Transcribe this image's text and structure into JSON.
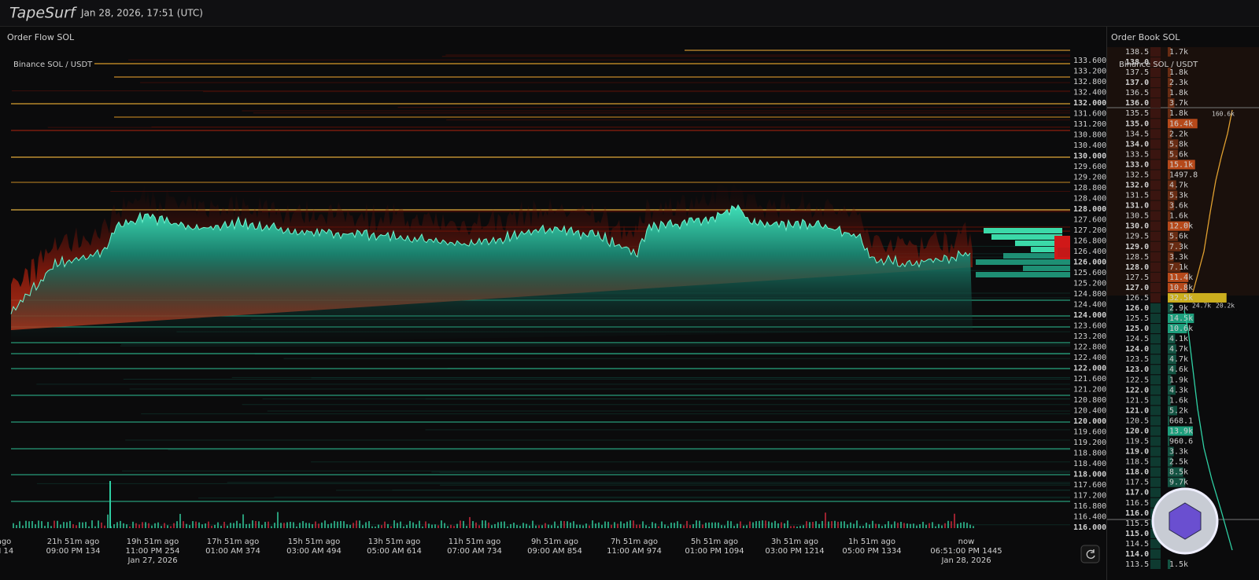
{
  "header": {
    "brand": "TapeSurf",
    "datetime": "Jan 28, 2026, 17:51 (UTC)"
  },
  "order_flow": {
    "title": "Order Flow SOL",
    "exchange": "Binance SOL / USDT",
    "price_axis": [
      "133.600",
      "133.200",
      "132.800",
      "132.400",
      "132.000",
      "131.600",
      "131.200",
      "130.800",
      "130.400",
      "130.000",
      "129.600",
      "129.200",
      "128.800",
      "128.400",
      "128.000",
      "127.600",
      "127.200",
      "126.800",
      "126.400",
      "126.000",
      "125.600",
      "125.200",
      "124.800",
      "124.400",
      "124.000",
      "123.600",
      "123.200",
      "122.800",
      "122.400",
      "122.000",
      "121.600",
      "121.200",
      "120.800",
      "120.400",
      "120.000",
      "119.600",
      "119.200",
      "118.800",
      "118.400",
      "118.000",
      "117.600",
      "117.200",
      "116.800",
      "116.400",
      "116.000"
    ],
    "time_axis": [
      {
        "ago": "ago",
        "time": "M 14"
      },
      {
        "ago": "21h 51m ago",
        "time": "09:00 PM 134"
      },
      {
        "ago": "19h 51m ago",
        "time": "11:00 PM 254",
        "date": "Jan 27, 2026"
      },
      {
        "ago": "17h 51m ago",
        "time": "01:00 AM 374"
      },
      {
        "ago": "15h 51m ago",
        "time": "03:00 AM 494"
      },
      {
        "ago": "13h 51m ago",
        "time": "05:00 AM 614"
      },
      {
        "ago": "11h 51m ago",
        "time": "07:00 AM 734"
      },
      {
        "ago": "9h 51m ago",
        "time": "09:00 AM 854"
      },
      {
        "ago": "7h 51m ago",
        "time": "11:00 AM 974"
      },
      {
        "ago": "5h 51m ago",
        "time": "01:00 PM 1094"
      },
      {
        "ago": "3h 51m ago",
        "time": "03:00 PM 1214"
      },
      {
        "ago": "1h 51m ago",
        "time": "05:00 PM 1334"
      },
      {
        "ago": "now",
        "time": "06:51:00 PM 1445",
        "date": "Jan 28, 2026"
      }
    ]
  },
  "order_book": {
    "title": "Order Book SOL",
    "exchange": "Binance SOL / USDT",
    "rows": [
      {
        "price": "138.5",
        "size": "1.7k"
      },
      {
        "price": "138.0"
      },
      {
        "price": "137.5",
        "size": "1.8k"
      },
      {
        "price": "137.0",
        "size": "2.3k"
      },
      {
        "price": "136.5",
        "size": "1.8k"
      },
      {
        "price": "136.0",
        "size": "3.7k"
      },
      {
        "price": "135.5",
        "size": "1.8k"
      },
      {
        "price": "135.0",
        "size": "16.4k"
      },
      {
        "price": "134.5",
        "size": "2.2k"
      },
      {
        "price": "134.0",
        "size": "5.8k"
      },
      {
        "price": "133.5",
        "size": "5.6k"
      },
      {
        "price": "133.0",
        "size": "15.1k"
      },
      {
        "price": "132.5",
        "size": "1497.8"
      },
      {
        "price": "132.0",
        "size": "4.7k"
      },
      {
        "price": "131.5",
        "size": "5.3k"
      },
      {
        "price": "131.0",
        "size": "3.6k"
      },
      {
        "price": "130.5",
        "size": "1.6k"
      },
      {
        "price": "130.0",
        "size": "12.0k"
      },
      {
        "price": "129.5",
        "size": "5.6k"
      },
      {
        "price": "129.0",
        "size": "7.3k"
      },
      {
        "price": "128.5",
        "size": "3.3k"
      },
      {
        "price": "128.0",
        "size": "7.1k"
      },
      {
        "price": "127.5",
        "size": "11.4k"
      },
      {
        "price": "127.0",
        "size": "10.8k"
      },
      {
        "price": "126.5",
        "size": "32.5k"
      },
      {
        "price": "126.0",
        "size": "2.9k"
      },
      {
        "price": "125.5",
        "size": "14.5k"
      },
      {
        "price": "125.0",
        "size": "10.6k"
      },
      {
        "price": "124.5",
        "size": "4.1k"
      },
      {
        "price": "124.0",
        "size": "4.7k"
      },
      {
        "price": "123.5",
        "size": "4.7k"
      },
      {
        "price": "123.0",
        "size": "4.6k"
      },
      {
        "price": "122.5",
        "size": "1.9k"
      },
      {
        "price": "122.0",
        "size": "4.3k"
      },
      {
        "price": "121.5",
        "size": "1.6k"
      },
      {
        "price": "121.0",
        "size": "5.2k"
      },
      {
        "price": "120.5",
        "size": "668.1"
      },
      {
        "price": "120.0",
        "size": "13.9k"
      },
      {
        "price": "119.5",
        "size": "960.6"
      },
      {
        "price": "119.0",
        "size": "3.3k"
      },
      {
        "price": "118.5",
        "size": "2.5k"
      },
      {
        "price": "118.0",
        "size": "8.5k"
      },
      {
        "price": "117.5",
        "size": "9.7k"
      },
      {
        "price": "117.0"
      },
      {
        "price": "116.5"
      },
      {
        "price": "116.0"
      },
      {
        "price": "115.5"
      },
      {
        "price": "115.0"
      },
      {
        "price": "114.5"
      },
      {
        "price": "114.0"
      },
      {
        "price": "113.5",
        "size": "1.5k"
      }
    ],
    "depth_labels": [
      "160.6k",
      "24.7k",
      "20.2k"
    ]
  }
}
